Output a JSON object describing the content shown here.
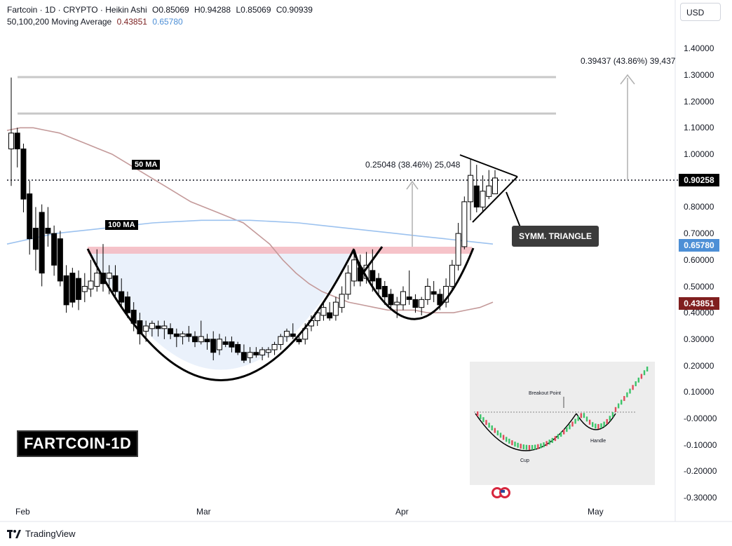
{
  "header": {
    "line1": "Fartcoin · 1D · CRYPTO · Heikin Ashi",
    "ohlc": [
      {
        "k": "O",
        "v": "0.85069"
      },
      {
        "k": "H",
        "v": "0.94288"
      },
      {
        "k": "L",
        "v": "0.85069"
      },
      {
        "k": "C",
        "v": "0.90939"
      }
    ],
    "ma_label": "50,100,200 Moving Average",
    "ma50_value": "0.43851",
    "ma100_value": "0.65780"
  },
  "currency_button": "USD",
  "y_axis": {
    "ticks": [
      "1.40000",
      "1.30000",
      "1.20000",
      "1.10000",
      "1.00000",
      "0.80000",
      "0.70000",
      "0.60000",
      "0.50000",
      "0.40000",
      "0.30000",
      "0.20000",
      "0.10000",
      "-0.00000",
      "-0.10000",
      "-0.20000",
      "-0.30000"
    ],
    "current_price_tag": "0.90258",
    "ma100_tag": "0.65780",
    "ma50_tag": "0.43851"
  },
  "x_axis": {
    "ticks": [
      "Feb",
      "Mar",
      "Apr",
      "May"
    ]
  },
  "annotations": {
    "big_label": "FARTCOIN-1D",
    "ma50_label": "50 MA",
    "ma100_label": "100 MA",
    "triangle_label": "SYMM. TRIANGLE",
    "measure_small": "0.25048 (38.46%) 25,048",
    "measure_large": "0.39437 (43.86%) 39,437"
  },
  "inset": {
    "breakout_label": "Breakout Point",
    "cup_label": "Cup",
    "handle_label": "Handle"
  },
  "footer": {
    "brand": "TradingView"
  },
  "colors": {
    "up": "#000000",
    "down": "#000000",
    "ma50": "#c49a9a",
    "ma100": "#9cc2ef",
    "resistance": "#f4b8c0",
    "cup_fill": "#e8f0fb",
    "ma50_tag": "#801f1f",
    "ma100_tag": "#4d8fd6"
  },
  "chart_data": {
    "type": "candlestick",
    "title": "",
    "ylim": [
      -0.3,
      1.45
    ],
    "x_ticks": [
      "Feb",
      "Mar",
      "Apr",
      "May"
    ],
    "candles": [
      {
        "o": 1.02,
        "h": 1.29,
        "l": 0.88,
        "c": 1.08
      },
      {
        "o": 1.08,
        "h": 1.1,
        "l": 0.95,
        "c": 1.02
      },
      {
        "o": 1.02,
        "h": 1.04,
        "l": 0.78,
        "c": 0.83
      },
      {
        "o": 0.85,
        "h": 0.9,
        "l": 0.62,
        "c": 0.68
      },
      {
        "o": 0.72,
        "h": 0.8,
        "l": 0.56,
        "c": 0.64
      },
      {
        "o": 0.78,
        "h": 0.81,
        "l": 0.5,
        "c": 0.55
      },
      {
        "o": 0.72,
        "h": 0.8,
        "l": 0.65,
        "c": 0.7
      },
      {
        "o": 0.7,
        "h": 0.73,
        "l": 0.54,
        "c": 0.58
      },
      {
        "o": 0.68,
        "h": 0.71,
        "l": 0.5,
        "c": 0.52
      },
      {
        "o": 0.54,
        "h": 0.58,
        "l": 0.4,
        "c": 0.43
      },
      {
        "o": 0.55,
        "h": 0.57,
        "l": 0.42,
        "c": 0.44
      },
      {
        "o": 0.53,
        "h": 0.56,
        "l": 0.41,
        "c": 0.45
      },
      {
        "o": 0.48,
        "h": 0.55,
        "l": 0.44,
        "c": 0.5
      },
      {
        "o": 0.49,
        "h": 0.6,
        "l": 0.46,
        "c": 0.52
      },
      {
        "o": 0.5,
        "h": 0.64,
        "l": 0.48,
        "c": 0.55
      },
      {
        "o": 0.55,
        "h": 0.66,
        "l": 0.48,
        "c": 0.51
      },
      {
        "o": 0.53,
        "h": 0.58,
        "l": 0.47,
        "c": 0.55
      },
      {
        "o": 0.54,
        "h": 0.58,
        "l": 0.45,
        "c": 0.48
      },
      {
        "o": 0.48,
        "h": 0.53,
        "l": 0.42,
        "c": 0.44
      },
      {
        "o": 0.46,
        "h": 0.48,
        "l": 0.38,
        "c": 0.4
      },
      {
        "o": 0.41,
        "h": 0.44,
        "l": 0.33,
        "c": 0.36
      },
      {
        "o": 0.37,
        "h": 0.4,
        "l": 0.28,
        "c": 0.32
      },
      {
        "o": 0.33,
        "h": 0.37,
        "l": 0.29,
        "c": 0.35
      },
      {
        "o": 0.34,
        "h": 0.37,
        "l": 0.31,
        "c": 0.36
      },
      {
        "o": 0.35,
        "h": 0.37,
        "l": 0.31,
        "c": 0.34
      },
      {
        "o": 0.34,
        "h": 0.37,
        "l": 0.3,
        "c": 0.35
      },
      {
        "o": 0.34,
        "h": 0.36,
        "l": 0.3,
        "c": 0.32
      },
      {
        "o": 0.32,
        "h": 0.34,
        "l": 0.27,
        "c": 0.31
      },
      {
        "o": 0.31,
        "h": 0.33,
        "l": 0.28,
        "c": 0.32
      },
      {
        "o": 0.32,
        "h": 0.35,
        "l": 0.29,
        "c": 0.31
      },
      {
        "o": 0.31,
        "h": 0.33,
        "l": 0.27,
        "c": 0.29
      },
      {
        "o": 0.29,
        "h": 0.37,
        "l": 0.28,
        "c": 0.31
      },
      {
        "o": 0.3,
        "h": 0.32,
        "l": 0.26,
        "c": 0.29
      },
      {
        "o": 0.3,
        "h": 0.33,
        "l": 0.22,
        "c": 0.25
      },
      {
        "o": 0.26,
        "h": 0.32,
        "l": 0.24,
        "c": 0.3
      },
      {
        "o": 0.29,
        "h": 0.31,
        "l": 0.27,
        "c": 0.28
      },
      {
        "o": 0.29,
        "h": 0.31,
        "l": 0.25,
        "c": 0.27
      },
      {
        "o": 0.28,
        "h": 0.29,
        "l": 0.24,
        "c": 0.25
      },
      {
        "o": 0.25,
        "h": 0.28,
        "l": 0.21,
        "c": 0.22
      },
      {
        "o": 0.23,
        "h": 0.27,
        "l": 0.21,
        "c": 0.25
      },
      {
        "o": 0.25,
        "h": 0.27,
        "l": 0.23,
        "c": 0.24
      },
      {
        "o": 0.24,
        "h": 0.27,
        "l": 0.22,
        "c": 0.26
      },
      {
        "o": 0.25,
        "h": 0.27,
        "l": 0.23,
        "c": 0.26
      },
      {
        "o": 0.26,
        "h": 0.29,
        "l": 0.24,
        "c": 0.28
      },
      {
        "o": 0.28,
        "h": 0.32,
        "l": 0.26,
        "c": 0.31
      },
      {
        "o": 0.31,
        "h": 0.34,
        "l": 0.29,
        "c": 0.33
      },
      {
        "o": 0.32,
        "h": 0.36,
        "l": 0.3,
        "c": 0.31
      },
      {
        "o": 0.3,
        "h": 0.32,
        "l": 0.28,
        "c": 0.29
      },
      {
        "o": 0.3,
        "h": 0.36,
        "l": 0.28,
        "c": 0.34
      },
      {
        "o": 0.35,
        "h": 0.39,
        "l": 0.33,
        "c": 0.37
      },
      {
        "o": 0.37,
        "h": 0.41,
        "l": 0.35,
        "c": 0.4
      },
      {
        "o": 0.39,
        "h": 0.44,
        "l": 0.37,
        "c": 0.42
      },
      {
        "o": 0.4,
        "h": 0.44,
        "l": 0.37,
        "c": 0.38
      },
      {
        "o": 0.39,
        "h": 0.46,
        "l": 0.37,
        "c": 0.44
      },
      {
        "o": 0.42,
        "h": 0.5,
        "l": 0.4,
        "c": 0.47
      },
      {
        "o": 0.47,
        "h": 0.58,
        "l": 0.45,
        "c": 0.55
      },
      {
        "o": 0.52,
        "h": 0.63,
        "l": 0.5,
        "c": 0.6
      },
      {
        "o": 0.57,
        "h": 0.62,
        "l": 0.5,
        "c": 0.52
      },
      {
        "o": 0.53,
        "h": 0.63,
        "l": 0.51,
        "c": 0.58
      },
      {
        "o": 0.56,
        "h": 0.64,
        "l": 0.48,
        "c": 0.52
      },
      {
        "o": 0.53,
        "h": 0.55,
        "l": 0.47,
        "c": 0.49
      },
      {
        "o": 0.5,
        "h": 0.52,
        "l": 0.43,
        "c": 0.46
      },
      {
        "o": 0.47,
        "h": 0.49,
        "l": 0.41,
        "c": 0.43
      },
      {
        "o": 0.43,
        "h": 0.46,
        "l": 0.38,
        "c": 0.44
      },
      {
        "o": 0.43,
        "h": 0.5,
        "l": 0.41,
        "c": 0.48
      },
      {
        "o": 0.46,
        "h": 0.56,
        "l": 0.43,
        "c": 0.45
      },
      {
        "o": 0.45,
        "h": 0.47,
        "l": 0.4,
        "c": 0.42
      },
      {
        "o": 0.42,
        "h": 0.46,
        "l": 0.39,
        "c": 0.45
      },
      {
        "o": 0.45,
        "h": 0.53,
        "l": 0.43,
        "c": 0.5
      },
      {
        "o": 0.48,
        "h": 0.52,
        "l": 0.44,
        "c": 0.47
      },
      {
        "o": 0.47,
        "h": 0.49,
        "l": 0.41,
        "c": 0.43
      },
      {
        "o": 0.44,
        "h": 0.53,
        "l": 0.42,
        "c": 0.5
      },
      {
        "o": 0.5,
        "h": 0.6,
        "l": 0.48,
        "c": 0.58
      },
      {
        "o": 0.58,
        "h": 0.74,
        "l": 0.56,
        "c": 0.7
      },
      {
        "o": 0.65,
        "h": 0.84,
        "l": 0.64,
        "c": 0.82
      },
      {
        "o": 0.82,
        "h": 0.98,
        "l": 0.75,
        "c": 0.92
      },
      {
        "o": 0.88,
        "h": 0.96,
        "l": 0.78,
        "c": 0.8
      },
      {
        "o": 0.8,
        "h": 0.92,
        "l": 0.78,
        "c": 0.86
      },
      {
        "o": 0.84,
        "h": 0.94,
        "l": 0.83,
        "c": 0.88
      },
      {
        "o": 0.85,
        "h": 0.94,
        "l": 0.85,
        "c": 0.91
      }
    ],
    "series": [
      {
        "name": "50 MA",
        "values": [
          1.09,
          1.1,
          1.1,
          1.09,
          1.08,
          1.06,
          1.04,
          1.02,
          1.0,
          0.97,
          0.94,
          0.91,
          0.88,
          0.85,
          0.82,
          0.8,
          0.78,
          0.76,
          0.74,
          0.7,
          0.66,
          0.6,
          0.55,
          0.51,
          0.48,
          0.46,
          0.44,
          0.43,
          0.42,
          0.41,
          0.41,
          0.41,
          0.4,
          0.4,
          0.4,
          0.41,
          0.42,
          0.44
        ]
      },
      {
        "name": "100 MA",
        "values": [
          0.66,
          0.68,
          0.7,
          0.71,
          0.72,
          0.73,
          0.74,
          0.745,
          0.75,
          0.75,
          0.75,
          0.745,
          0.74,
          0.73,
          0.72,
          0.71,
          0.7,
          0.69,
          0.68,
          0.67,
          0.66
        ]
      }
    ],
    "levels": [
      {
        "name": "resistance",
        "value": 0.635
      },
      {
        "name": "high-line-1",
        "value": 1.29
      },
      {
        "name": "high-line-2",
        "value": 1.15
      },
      {
        "name": "current",
        "value": 0.90258
      }
    ]
  }
}
